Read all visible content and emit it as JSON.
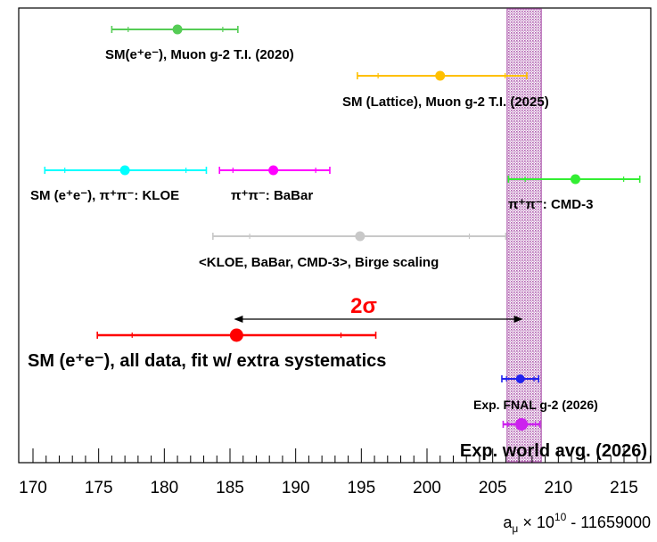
{
  "chart_data": {
    "type": "scatter",
    "title": "",
    "xlabel": {
      "pre": "a",
      "sub": "μ",
      "mid": " × 10",
      "sup": "10",
      "post": " - 11659000"
    },
    "xlim": [
      170,
      218
    ],
    "x_ticks": [
      170,
      175,
      180,
      185,
      190,
      195,
      200,
      205,
      210,
      215
    ],
    "band": {
      "low": 206.1,
      "high": 208.7,
      "color": "#b060b0"
    },
    "sigma_arrow": {
      "from": 185.3,
      "to": 207.3,
      "label": "2σ",
      "label_color": "#ff0000"
    },
    "series": [
      {
        "label": "SM(e⁺e⁻), Muon g-2 T.I. (2020)",
        "x": 181.0,
        "lo": 176.0,
        "hi": 185.6,
        "color": "#55cc55"
      },
      {
        "label": "SM (Lattice), Muon g-2 T.I. (2025)",
        "x": 201.0,
        "lo": 194.7,
        "hi": 207.6,
        "color": "#ffc000"
      },
      {
        "label": "SM (e⁺e⁻),  π⁺π⁻: KLOE",
        "x": 177.0,
        "lo": 170.9,
        "hi": 183.2,
        "color": "#00ffff"
      },
      {
        "label": "π⁺π⁻: BaBar",
        "x": 188.3,
        "lo": 184.2,
        "hi": 192.6,
        "color": "#ff00ff"
      },
      {
        "label": "π⁺π⁻: CMD-3",
        "x": 211.3,
        "lo": 206.2,
        "hi": 216.2,
        "color": "#33ee33"
      },
      {
        "label": "<KLOE, BaBar, CMD-3>, Birge scaling",
        "x": 194.9,
        "lo": 183.7,
        "hi": 206.0,
        "color": "#c8c8c8"
      },
      {
        "label": "SM (e⁺e⁻),  all data, fit w/ extra systematics",
        "x": 185.5,
        "lo": 174.9,
        "hi": 196.1,
        "color": "#ff0000"
      },
      {
        "label": "Exp. FNAL g-2 (2026)",
        "x": 207.1,
        "lo": 205.7,
        "hi": 208.5,
        "color": "#2222ee"
      },
      {
        "label": "Exp. world avg. (2026)",
        "x": 207.2,
        "lo": 205.8,
        "hi": 208.6,
        "color": "#cc22ee"
      }
    ]
  }
}
